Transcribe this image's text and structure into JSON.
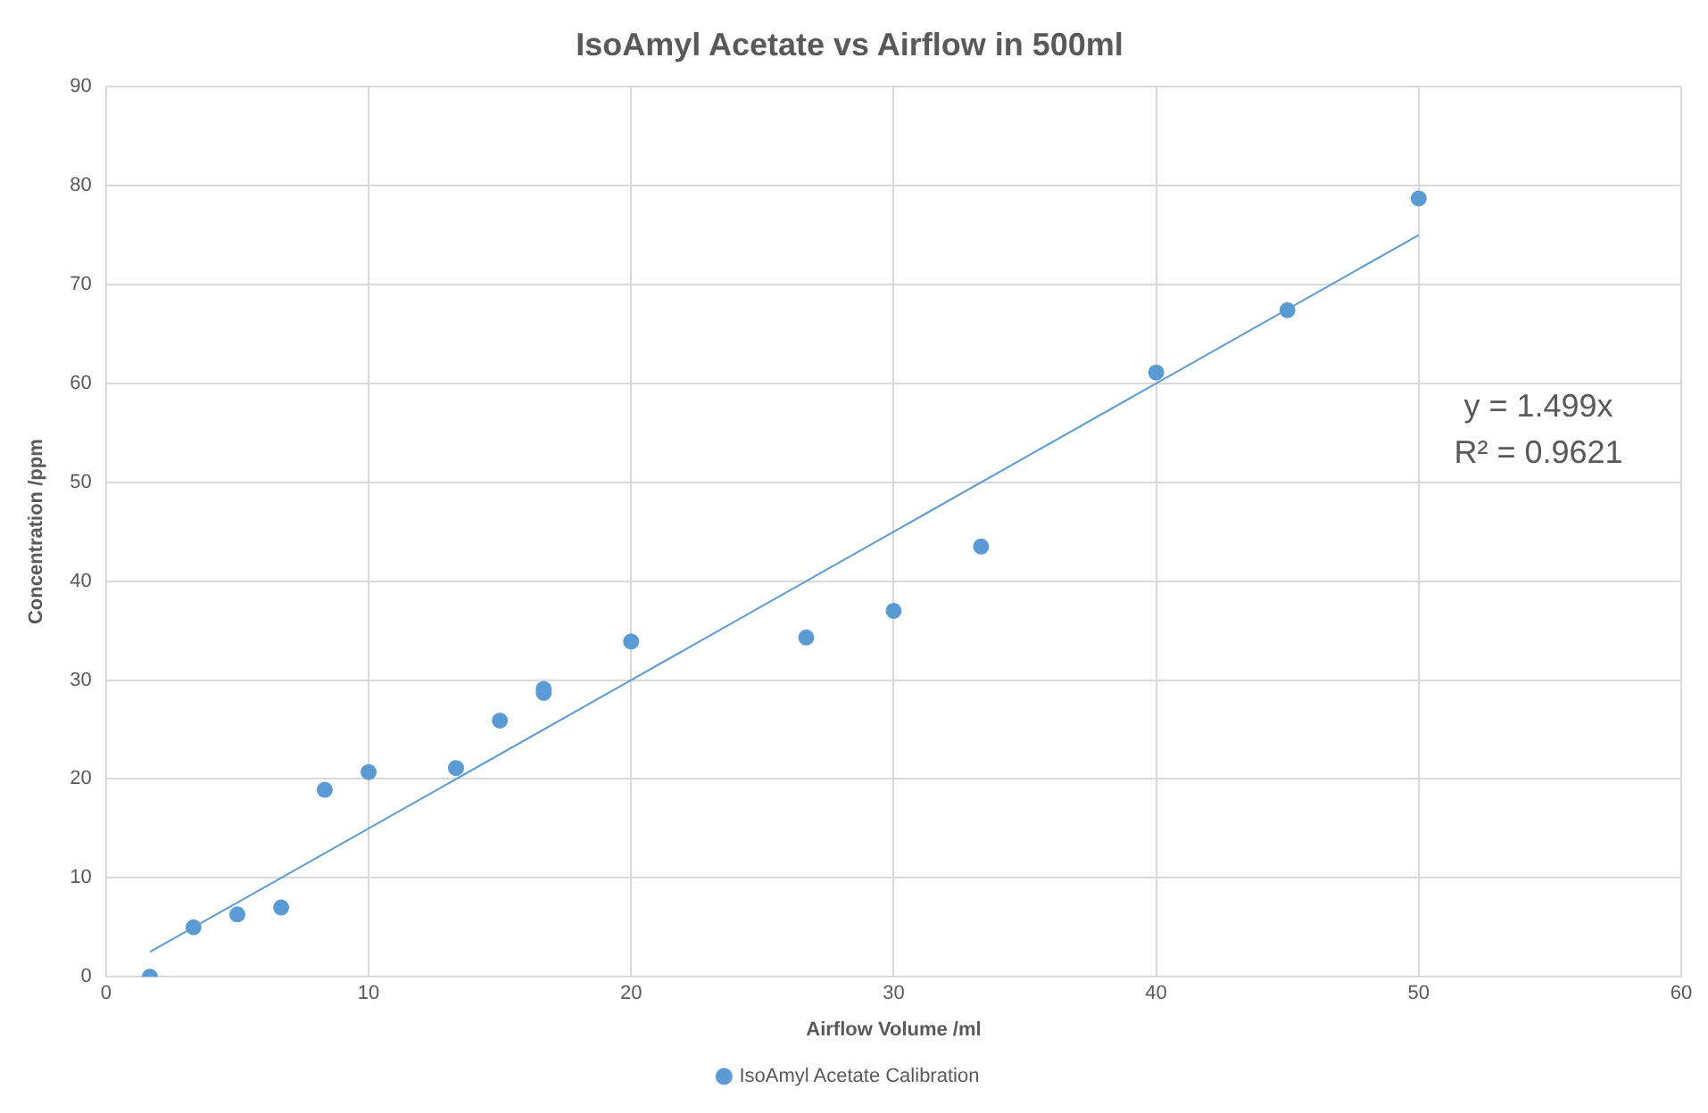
{
  "chart_data": {
    "type": "scatter",
    "title": "IsoAmyl Acetate vs Airflow in 500ml",
    "xlabel": "Airflow Volume /ml",
    "ylabel": "Concentration /ppm",
    "series": [
      {
        "name": "IsoAmyl Acetate Calibration",
        "color": "#5b9bd5",
        "marker": "circle",
        "x": [
          1.67,
          3.33,
          5,
          6.67,
          8.33,
          10,
          13.33,
          15,
          16.67,
          16.67,
          20,
          26.67,
          30,
          33.33,
          40,
          45,
          50
        ],
        "values": [
          0,
          5.0,
          6.3,
          7.0,
          18.9,
          20.7,
          21.1,
          25.9,
          28.7,
          29.1,
          33.9,
          34.3,
          37,
          43.5,
          61.1,
          67.4,
          78.7
        ]
      },
      {
        "type": "line",
        "color": "#5b9bd5",
        "marker": "none",
        "x": [
          1.67,
          50
        ],
        "values": [
          2.5,
          75.0
        ]
      }
    ],
    "xlim": [
      0,
      60
    ],
    "xticks": [
      0,
      10,
      20,
      30,
      40,
      50,
      60
    ],
    "ylim": [
      0,
      90
    ],
    "yticks": [
      0,
      10,
      20,
      30,
      40,
      50,
      60,
      70,
      80,
      90
    ],
    "grid": true,
    "legend": "bottom",
    "annotations": [
      "y = 1.499x",
      "R² = 0.9621"
    ]
  }
}
